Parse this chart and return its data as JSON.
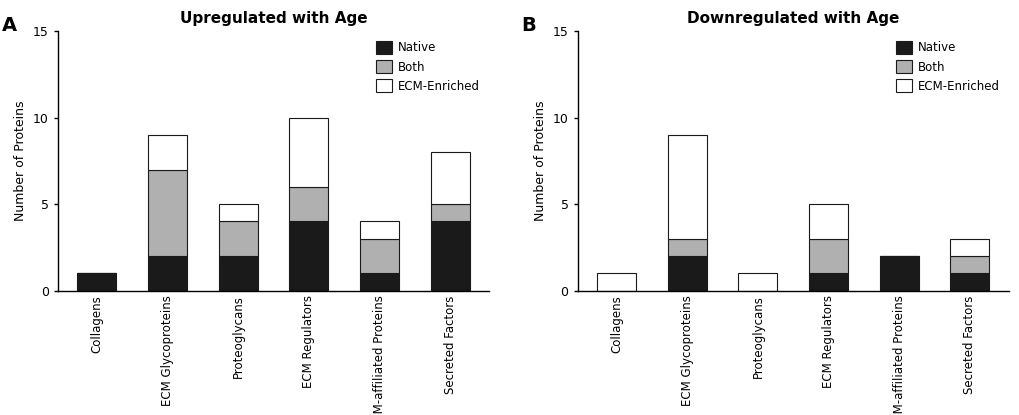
{
  "panel_A": {
    "title": "Upregulated with Age",
    "categories": [
      "Collagens",
      "ECM Glycoproteins",
      "Proteoglycans",
      "ECM Regulators",
      "ECM-affiliated Proteins",
      "Secreted Factors"
    ],
    "native": [
      1,
      2,
      2,
      4,
      1,
      4
    ],
    "both": [
      0,
      5,
      2,
      2,
      2,
      1
    ],
    "ecm_enriched": [
      0,
      2,
      1,
      4,
      1,
      3
    ]
  },
  "panel_B": {
    "title": "Downregulated with Age",
    "categories": [
      "Collagens",
      "ECM Glycoproteins",
      "Proteoglycans",
      "ECM Regulators",
      "ECM-affiliated Proteins",
      "Secreted Factors"
    ],
    "native": [
      0,
      2,
      0,
      1,
      2,
      1
    ],
    "both": [
      0,
      1,
      0,
      2,
      0,
      1
    ],
    "ecm_enriched": [
      1,
      6,
      1,
      2,
      0,
      1
    ]
  },
  "colors": {
    "native": "#1a1a1a",
    "both": "#b0b0b0",
    "ecm_enriched": "#ffffff"
  },
  "ylim": [
    0,
    15
  ],
  "yticks": [
    0,
    5,
    10,
    15
  ],
  "ylabel": "Number of Proteins",
  "core_indices": [
    0,
    1,
    2
  ],
  "assoc_indices": [
    3,
    4,
    5
  ],
  "bar_width": 0.55,
  "bar_edgecolor": "#1a1a1a",
  "background_color": "#ffffff"
}
